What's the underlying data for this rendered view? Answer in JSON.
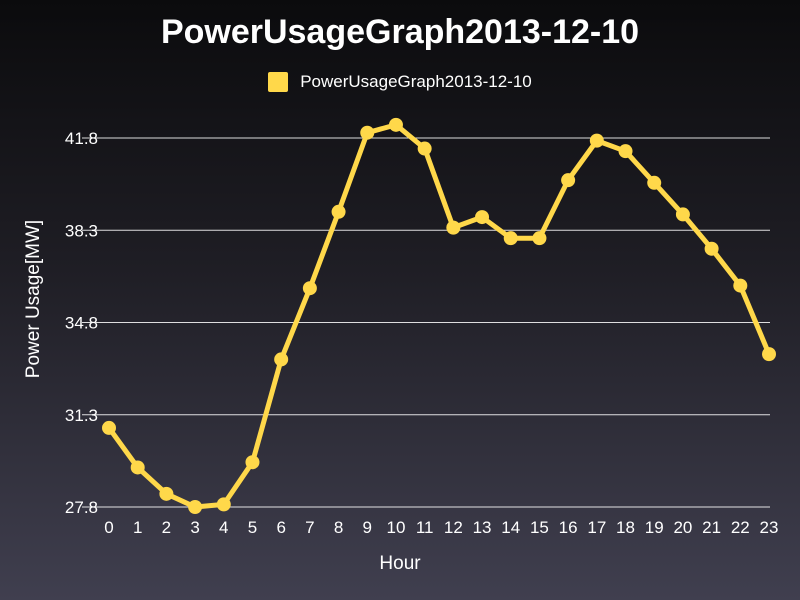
{
  "chart_data": {
    "type": "line",
    "title": "PowerUsageGraph2013-12-10",
    "xlabel": "Hour",
    "ylabel": "Power Usage[MW]",
    "x": [
      0,
      1,
      2,
      3,
      4,
      5,
      6,
      7,
      8,
      9,
      10,
      11,
      12,
      13,
      14,
      15,
      16,
      17,
      18,
      19,
      20,
      21,
      22,
      23
    ],
    "yticks": [
      "27.8",
      "31.3",
      "34.8",
      "38.3",
      "41.8"
    ],
    "ylim": [
      27.8,
      41.8
    ],
    "legend_position": "top-center",
    "grid": "horizontal",
    "series": [
      {
        "name": "PowerUsageGraph2013-12-10",
        "color": "#ffd84a",
        "values": [
          30.8,
          29.3,
          28.3,
          27.8,
          27.9,
          29.5,
          33.4,
          36.1,
          39.0,
          42.0,
          42.3,
          41.4,
          38.4,
          38.8,
          38.0,
          38.0,
          40.2,
          41.7,
          41.3,
          40.1,
          38.9,
          37.6,
          36.2,
          33.6
        ]
      }
    ]
  }
}
